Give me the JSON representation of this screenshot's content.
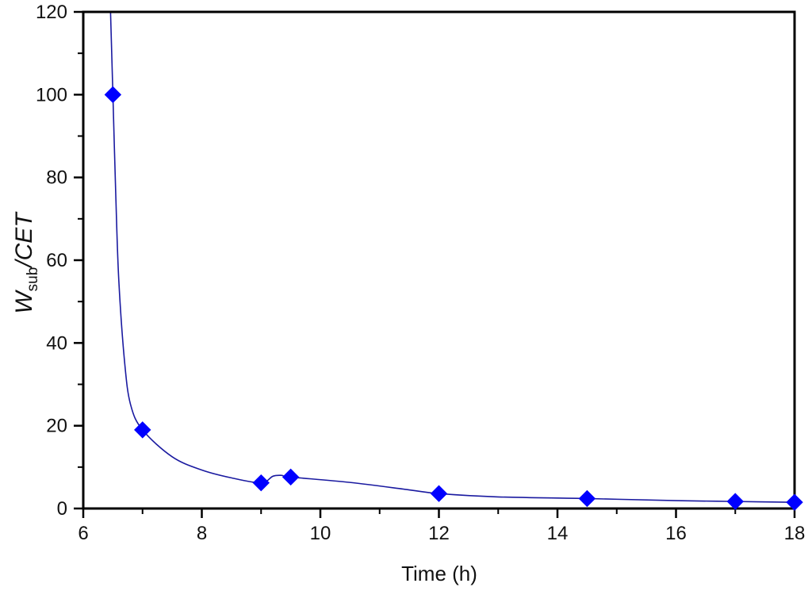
{
  "chart_data": {
    "type": "scatter",
    "title": "",
    "xlabel": "Time (h)",
    "ylabel": {
      "main": "W",
      "sub": "sub",
      "rest": "/CET"
    },
    "xlim": [
      6,
      18
    ],
    "ylim": [
      0,
      120
    ],
    "x_ticks": [
      6,
      8,
      10,
      12,
      14,
      16,
      18
    ],
    "y_ticks": [
      0,
      20,
      40,
      60,
      80,
      100,
      120
    ],
    "grid": false,
    "legend": "none",
    "series": [
      {
        "marker": "diamond",
        "color": "#0000ff",
        "points": [
          {
            "x": 6.5,
            "y": 100
          },
          {
            "x": 7,
            "y": 19
          },
          {
            "x": 9,
            "y": 6.2
          },
          {
            "x": 9.5,
            "y": 7.6
          },
          {
            "x": 12,
            "y": 3.6
          },
          {
            "x": 14.5,
            "y": 2.4
          },
          {
            "x": 17,
            "y": 1.7
          },
          {
            "x": 18,
            "y": 1.5
          }
        ]
      }
    ],
    "fit_curve": {
      "color": "#1a1aa0",
      "points": [
        {
          "x": 6.46,
          "y": 120
        },
        {
          "x": 6.5,
          "y": 100
        },
        {
          "x": 6.55,
          "y": 75
        },
        {
          "x": 6.6,
          "y": 55
        },
        {
          "x": 6.7,
          "y": 35
        },
        {
          "x": 6.8,
          "y": 25
        },
        {
          "x": 7,
          "y": 19
        },
        {
          "x": 7.5,
          "y": 12.5
        },
        {
          "x": 8,
          "y": 9.3
        },
        {
          "x": 8.5,
          "y": 7.4
        },
        {
          "x": 9,
          "y": 6.2
        },
        {
          "x": 9.2,
          "y": 7.8
        },
        {
          "x": 9.35,
          "y": 8.0
        },
        {
          "x": 9.5,
          "y": 7.6
        },
        {
          "x": 10.5,
          "y": 6.3
        },
        {
          "x": 11.5,
          "y": 4.5
        },
        {
          "x": 12,
          "y": 3.6
        },
        {
          "x": 13,
          "y": 2.8
        },
        {
          "x": 14.5,
          "y": 2.4
        },
        {
          "x": 16,
          "y": 1.9
        },
        {
          "x": 17,
          "y": 1.7
        },
        {
          "x": 18,
          "y": 1.5
        }
      ]
    }
  }
}
